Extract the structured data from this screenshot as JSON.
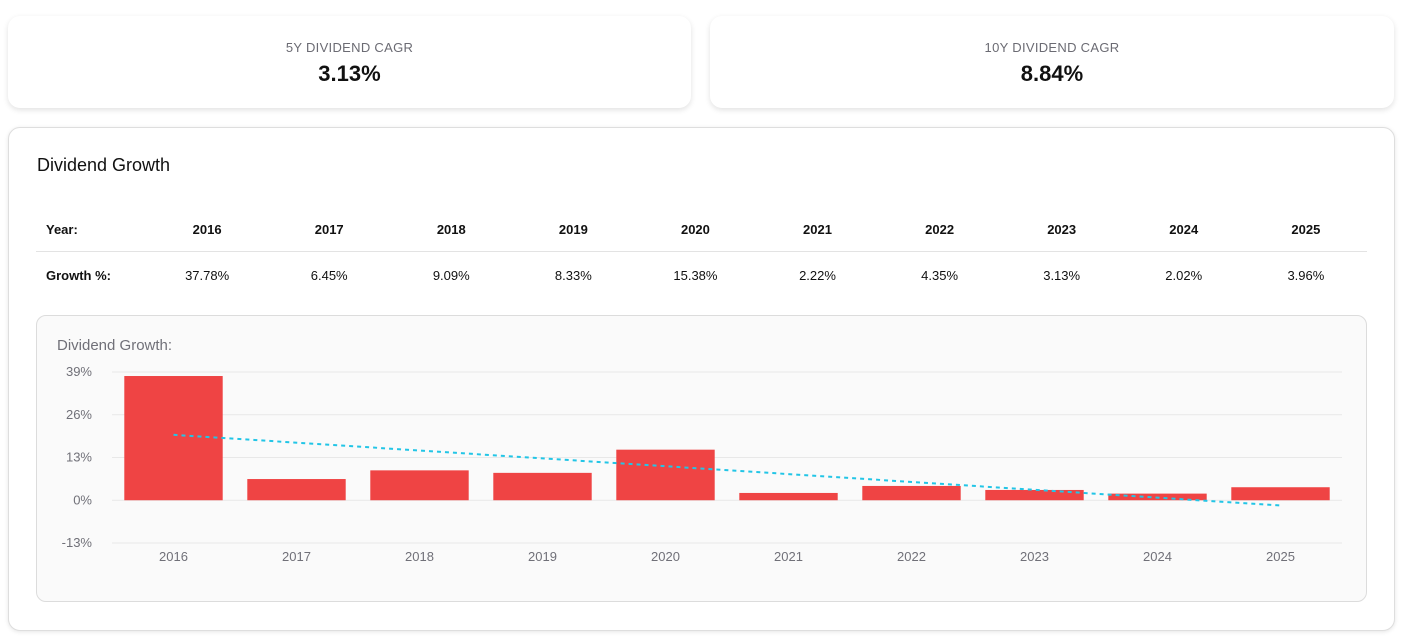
{
  "stats": [
    {
      "label": "5Y DIVIDEND CAGR",
      "value": "3.13%"
    },
    {
      "label": "10Y DIVIDEND CAGR",
      "value": "8.84%"
    }
  ],
  "section": {
    "title": "Dividend Growth",
    "table": {
      "year_label": "Year:",
      "growth_label": "Growth %:",
      "years": [
        "2016",
        "2017",
        "2018",
        "2019",
        "2020",
        "2021",
        "2022",
        "2023",
        "2024",
        "2025"
      ],
      "growth": [
        "37.78%",
        "6.45%",
        "9.09%",
        "8.33%",
        "15.38%",
        "2.22%",
        "4.35%",
        "3.13%",
        "2.02%",
        "3.96%"
      ]
    }
  },
  "chart_data": {
    "type": "bar",
    "title": "Dividend Growth:",
    "categories": [
      "2016",
      "2017",
      "2018",
      "2019",
      "2020",
      "2021",
      "2022",
      "2023",
      "2024",
      "2025"
    ],
    "values": [
      37.78,
      6.45,
      9.09,
      8.33,
      15.38,
      2.22,
      4.35,
      3.13,
      2.02,
      3.96
    ],
    "ylim": [
      -13,
      39
    ],
    "yticks": [
      -13,
      0,
      13,
      26,
      39
    ],
    "ytick_labels": [
      "-13%",
      "0%",
      "13%",
      "26%",
      "39%"
    ],
    "trendline": {
      "start": 19.9,
      "end": -1.6
    },
    "grid": true,
    "colors": {
      "bar": "#ef4444",
      "trend": "#22c5e6",
      "grid": "#e8e8e8"
    }
  }
}
